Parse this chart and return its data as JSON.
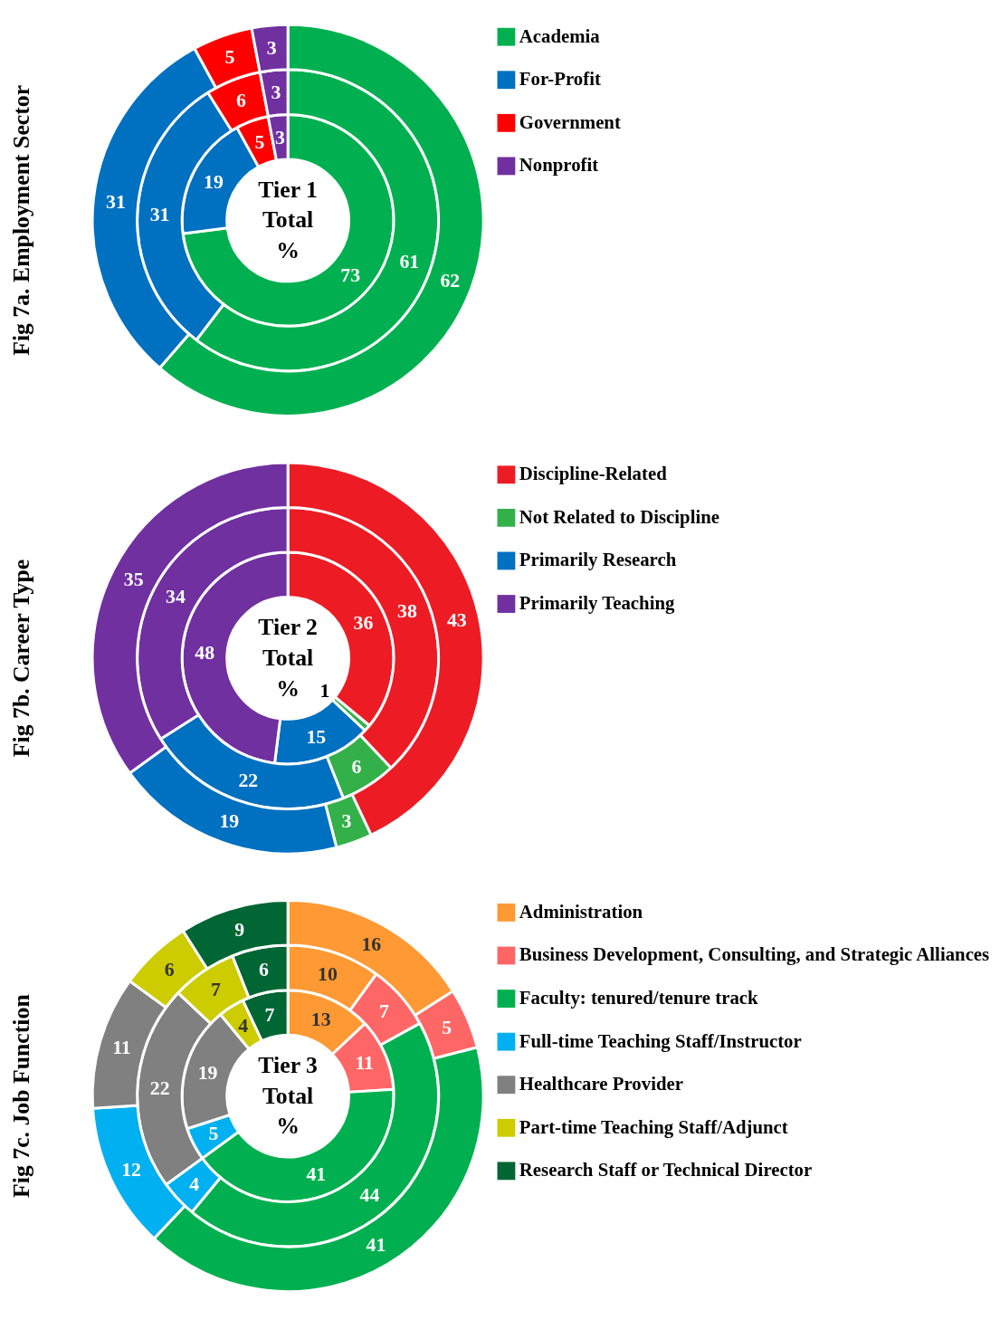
{
  "chart_data": [
    {
      "type": "donut",
      "title": "Fig 7a. Employment Sector",
      "categories": [
        "Academia",
        "For-Profit",
        "Government",
        "Nonprofit"
      ],
      "colors": [
        "#00b050",
        "#0070c0",
        "#ff0000",
        "#7030a0"
      ],
      "legend": "right",
      "data_labels": true,
      "annotations": [
        "Tier 1\nTotal\n%"
      ],
      "series": [
        {
          "values": [
            73,
            19,
            5,
            3
          ]
        },
        {
          "values": [
            61,
            31,
            6,
            3
          ]
        },
        {
          "values": [
            62,
            31,
            5,
            3
          ]
        }
      ]
    },
    {
      "type": "donut",
      "title": "Fig 7b. Career Type",
      "categories": [
        "Discipline-Related",
        "Not Related to Discipline",
        "Primarily Research",
        "Primarily Teaching"
      ],
      "colors": [
        "#ed1c24",
        "#33b04a",
        "#0070c0",
        "#7030a0"
      ],
      "legend": "right",
      "data_labels": true,
      "annotations": [
        "Tier 2\nTotal\n%"
      ],
      "series": [
        {
          "values": [
            36,
            1,
            15,
            48
          ]
        },
        {
          "values": [
            38,
            6,
            22,
            34
          ]
        },
        {
          "values": [
            43,
            3,
            19,
            35
          ]
        }
      ]
    },
    {
      "type": "donut",
      "title": "Fig 7c. Job Function",
      "categories": [
        "Administration",
        "Business Development, Consulting, and Strategic Alliances",
        "Faculty: tenured/tenure track",
        "Full-time Teaching Staff/Instructor",
        "Healthcare Provider",
        "Part-time Teaching Staff/Adjunct",
        "Research Staff or Technical Director"
      ],
      "colors": [
        "#ff9933",
        "#ff6666",
        "#00b050",
        "#00b0f0",
        "#808080",
        "#cccc00",
        "#006633"
      ],
      "legend": "right",
      "data_labels": true,
      "annotations": [
        "Tier 3\nTotal\n%"
      ],
      "series": [
        {
          "values": [
            13,
            11,
            41,
            5,
            19,
            4,
            7
          ]
        },
        {
          "values": [
            10,
            7,
            44,
            4,
            22,
            7,
            6
          ]
        },
        {
          "values": [
            16,
            5,
            41,
            12,
            11,
            6,
            9
          ]
        }
      ]
    }
  ]
}
